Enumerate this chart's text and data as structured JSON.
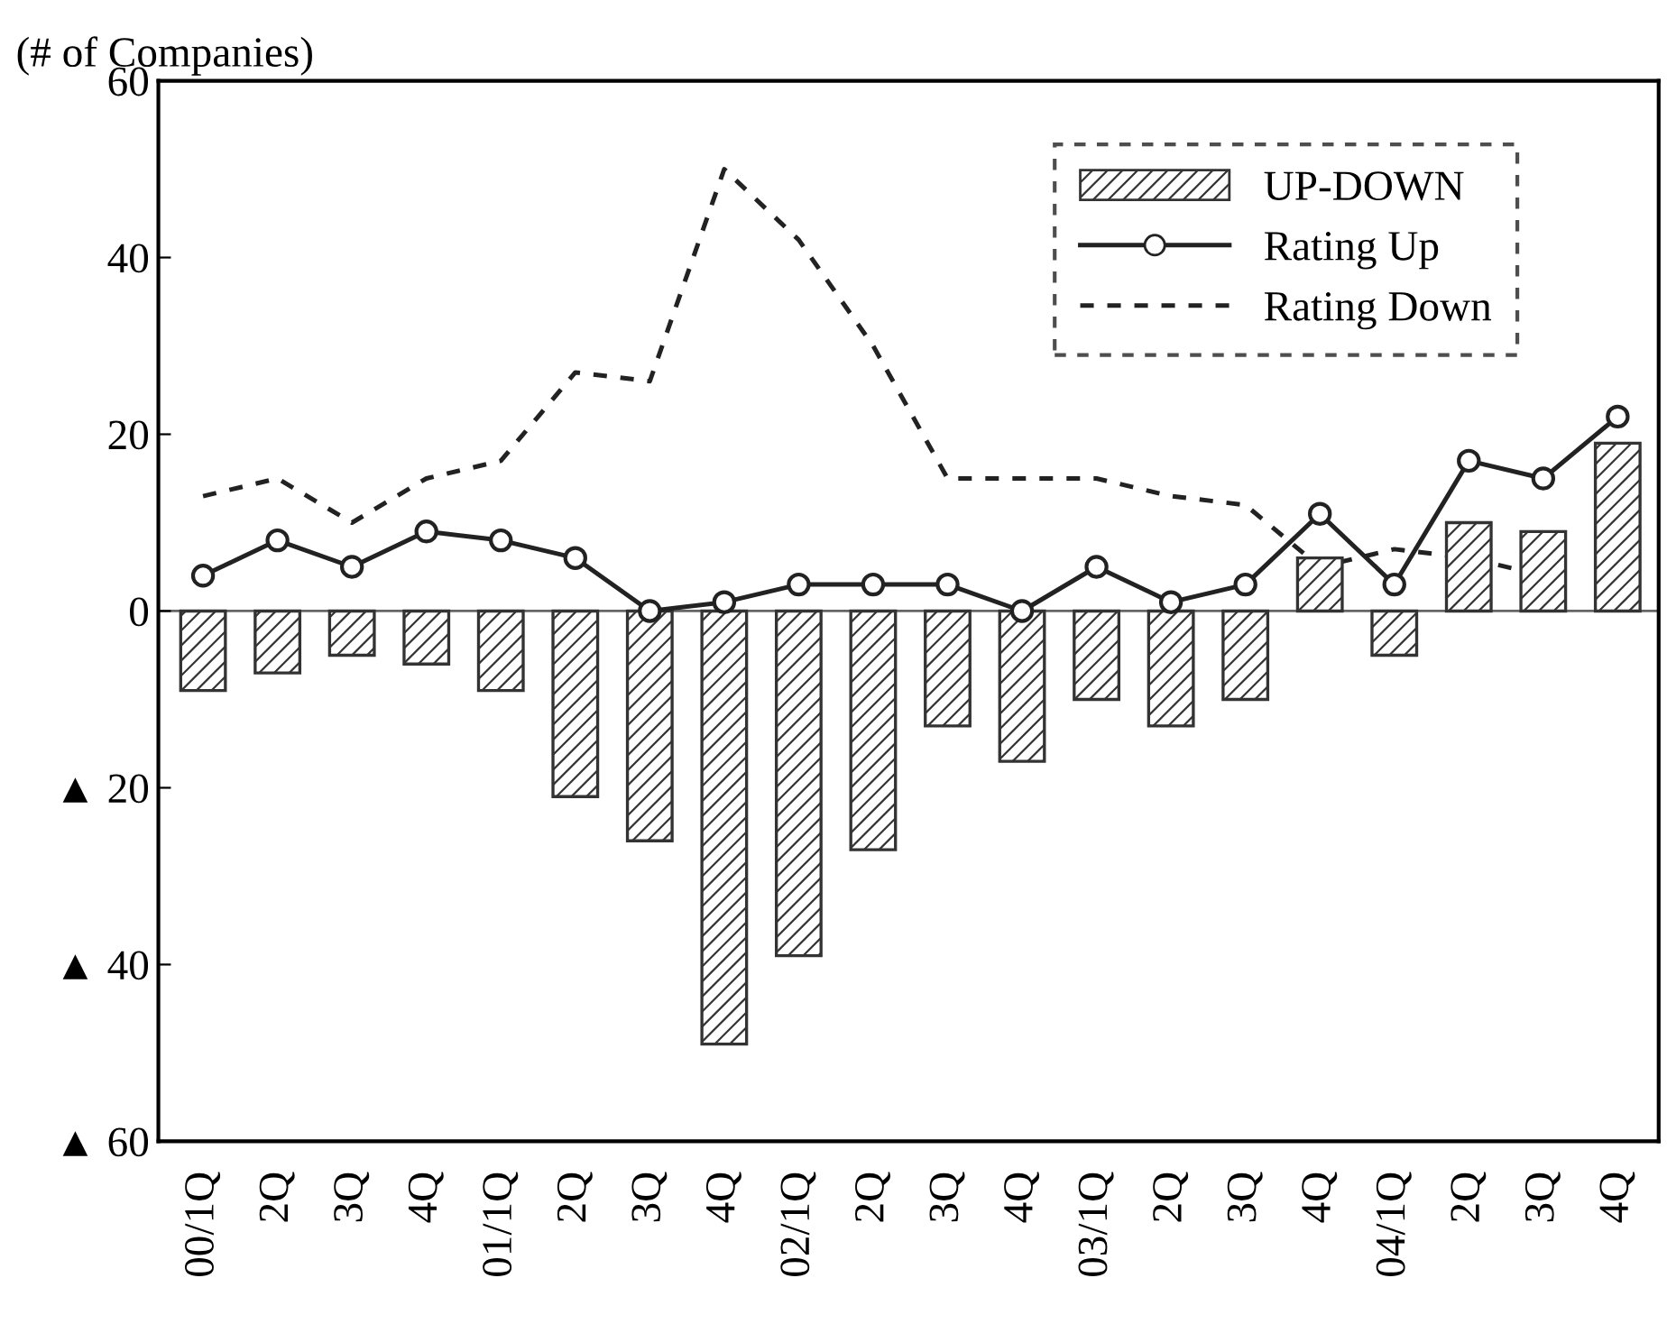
{
  "chart_data": {
    "type": "bar",
    "ylabel": "(# of Companies)",
    "categories": [
      "00/1Q",
      "2Q",
      "3Q",
      "4Q",
      "01/1Q",
      "2Q",
      "3Q",
      "4Q",
      "02/1Q",
      "2Q",
      "3Q",
      "4Q",
      "03/1Q",
      "2Q",
      "3Q",
      "4Q",
      "04/1Q",
      "2Q",
      "3Q",
      "4Q"
    ],
    "series": [
      {
        "name": "UP-DOWN",
        "color": "#333333",
        "values": [
          -9,
          -7,
          -5,
          -6,
          -9,
          -21,
          -26,
          -49,
          -39,
          -27,
          -13,
          -17,
          -10,
          -13,
          -10,
          6,
          -5,
          10,
          9,
          19
        ]
      },
      {
        "name": "Rating Up",
        "type": "line",
        "color": "#222222",
        "marker": "circle",
        "line_style": "solid",
        "values": [
          4,
          8,
          5,
          9,
          8,
          6,
          0,
          1,
          3,
          3,
          3,
          0,
          5,
          1,
          3,
          11,
          3,
          17,
          15,
          22
        ]
      },
      {
        "name": "Rating Down",
        "type": "line",
        "color": "#222222",
        "marker": "none",
        "line_style": "dashed",
        "values": [
          13,
          15,
          10,
          15,
          17,
          27,
          26,
          50,
          42,
          30,
          15,
          15,
          15,
          13,
          12,
          5,
          7,
          6,
          4,
          null
        ]
      }
    ],
    "ylim": [
      -60,
      60
    ],
    "yticks": [
      {
        "value": 60,
        "label": "60"
      },
      {
        "value": 40,
        "label": "40"
      },
      {
        "value": 20,
        "label": "20"
      },
      {
        "value": 0,
        "label": "0"
      },
      {
        "value": -20,
        "label": "▲ 20"
      },
      {
        "value": -40,
        "label": "▲ 40"
      },
      {
        "value": -60,
        "label": "▲ 60"
      }
    ],
    "ref_lines": [
      {
        "axis": "y",
        "value": 0,
        "color": "#666666"
      }
    ],
    "grid": false,
    "legend": "top right"
  }
}
